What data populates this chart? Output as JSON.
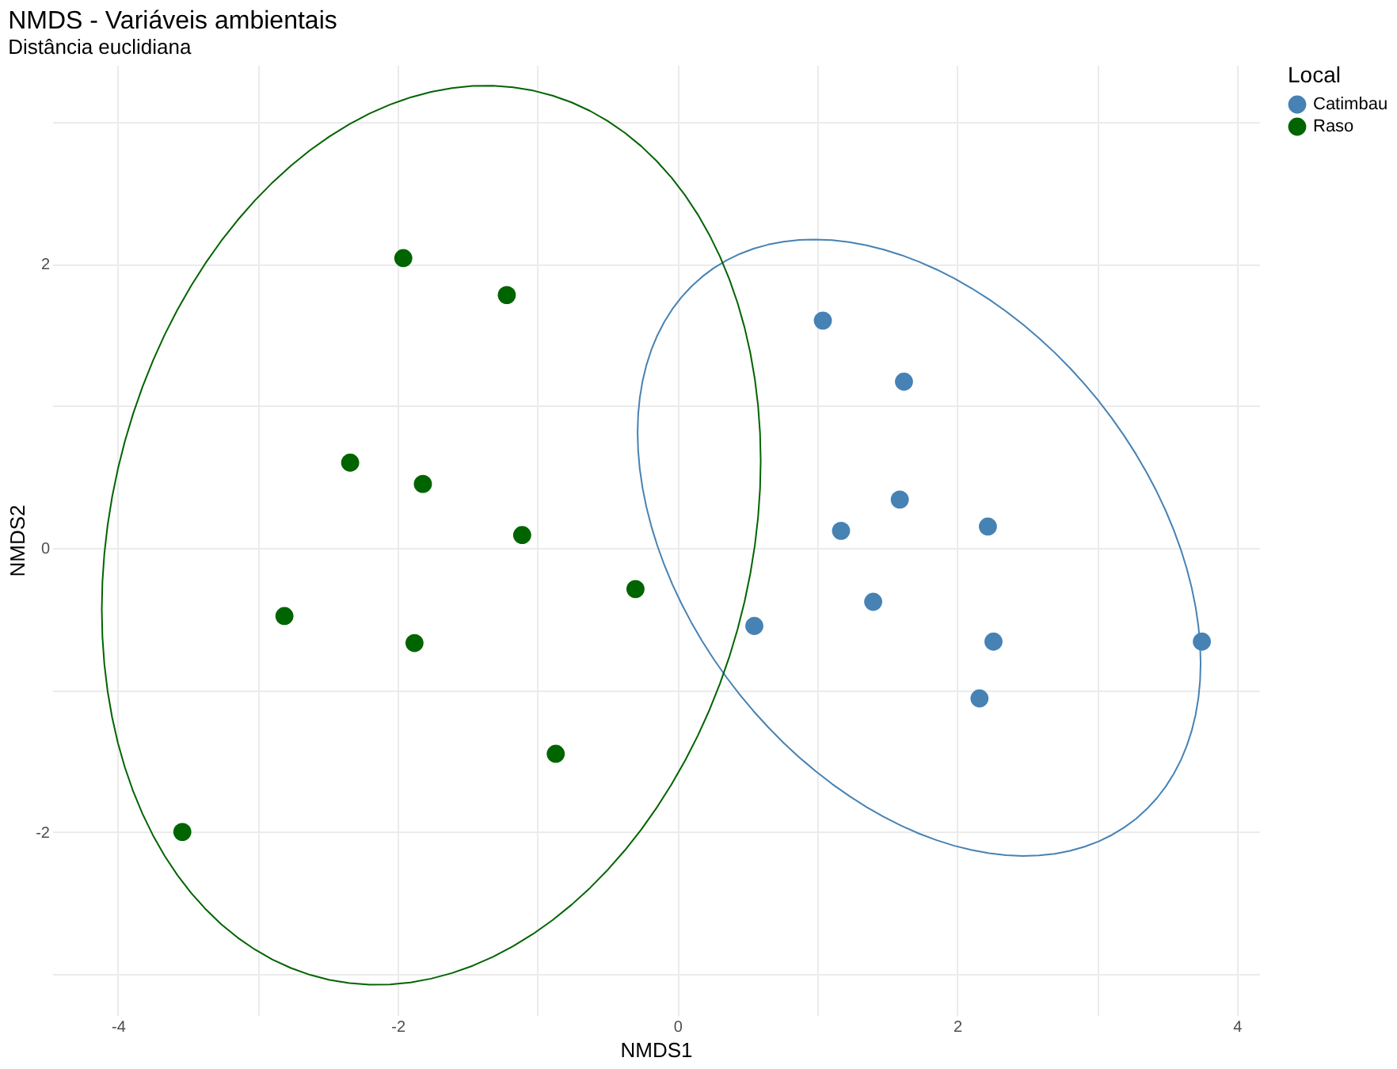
{
  "chart_data": {
    "type": "scatter",
    "title": "NMDS - Variáveis ambientais",
    "subtitle": "Distância euclidiana",
    "xlabel": "NMDS1",
    "ylabel": "NMDS2",
    "legend_title": "Local",
    "legend": "right",
    "grid": true,
    "marker": "circle",
    "xlim": [
      -4.47,
      4.16
    ],
    "ylim": [
      -3.29,
      3.4
    ],
    "xticks": [
      -4,
      {
        "value": -3,
        "label": null
      },
      -2,
      {
        "value": -1,
        "label": null
      },
      0,
      {
        "value": 1,
        "label": null
      },
      2,
      {
        "value": 3,
        "label": null
      },
      4
    ],
    "yticks": [
      {
        "value": -3,
        "label": null
      },
      -2,
      {
        "value": -1,
        "label": null
      },
      0,
      {
        "value": 1,
        "label": null
      },
      2,
      {
        "value": 3,
        "label": null
      }
    ],
    "series": [
      {
        "name": "Catimbau",
        "color": "#4682b4",
        "x": [
          1.04,
          1.62,
          1.59,
          1.17,
          2.22,
          1.4,
          0.55,
          2.26,
          3.75,
          2.16
        ],
        "values": [
          1.6,
          1.17,
          0.34,
          0.12,
          0.15,
          -0.38,
          -0.55,
          -0.66,
          -0.66,
          -1.06
        ]
      },
      {
        "name": "Raso",
        "color": "#006400",
        "x": [
          -1.96,
          -1.22,
          -2.34,
          -1.82,
          -1.11,
          -0.3,
          -2.81,
          -1.88,
          -0.87,
          -3.54
        ],
        "values": [
          2.04,
          1.78,
          0.6,
          0.45,
          0.09,
          -0.29,
          -0.48,
          -0.67,
          -1.45,
          -2.0
        ]
      }
    ]
  }
}
